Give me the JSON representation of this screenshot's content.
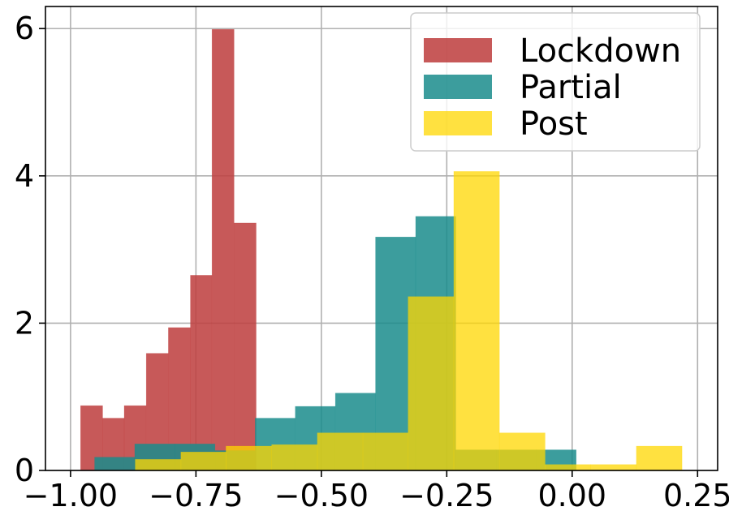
{
  "chart_data": {
    "type": "bar",
    "subtype": "histogram",
    "title": "",
    "xlabel": "",
    "ylabel": "",
    "xlim": [
      -1.05,
      0.29
    ],
    "ylim": [
      0,
      6.3
    ],
    "xticks": [
      -1.0,
      -0.75,
      -0.5,
      -0.25,
      0.0,
      0.25
    ],
    "xtick_labels": [
      "−1.00",
      "−0.75",
      "−0.50",
      "−0.25",
      "0.00",
      "0.25"
    ],
    "yticks": [
      0,
      2,
      4,
      6
    ],
    "ytick_labels": [
      "0",
      "2",
      "4",
      "6"
    ],
    "grid": true,
    "legend_position": "top-right",
    "series": [
      {
        "name": "Lockdown",
        "color": "#bf4040",
        "opacity": 0.87,
        "bins": [
          {
            "x0": -0.98,
            "x1": -0.936,
            "value": 0.88
          },
          {
            "x0": -0.936,
            "x1": -0.893,
            "value": 0.71
          },
          {
            "x0": -0.893,
            "x1": -0.849,
            "value": 0.88
          },
          {
            "x0": -0.849,
            "x1": -0.805,
            "value": 1.59
          },
          {
            "x0": -0.805,
            "x1": -0.761,
            "value": 1.94
          },
          {
            "x0": -0.761,
            "x1": -0.718,
            "value": 2.65
          },
          {
            "x0": -0.718,
            "x1": -0.674,
            "value": 5.99
          },
          {
            "x0": -0.674,
            "x1": -0.63,
            "value": 3.36
          }
        ]
      },
      {
        "name": "Partial",
        "color": "#1a8c8c",
        "opacity": 0.85,
        "bins": [
          {
            "x0": -0.952,
            "x1": -0.872,
            "value": 0.18
          },
          {
            "x0": -0.872,
            "x1": -0.792,
            "value": 0.36
          },
          {
            "x0": -0.792,
            "x1": -0.712,
            "value": 0.36
          },
          {
            "x0": -0.712,
            "x1": -0.632,
            "value": 0.27
          },
          {
            "x0": -0.632,
            "x1": -0.552,
            "value": 0.71
          },
          {
            "x0": -0.552,
            "x1": -0.472,
            "value": 0.87
          },
          {
            "x0": -0.472,
            "x1": -0.392,
            "value": 1.05
          },
          {
            "x0": -0.392,
            "x1": -0.312,
            "value": 3.17
          },
          {
            "x0": -0.312,
            "x1": -0.232,
            "value": 3.45
          },
          {
            "x0": -0.232,
            "x1": -0.152,
            "value": 0.28
          },
          {
            "x0": -0.152,
            "x1": -0.072,
            "value": 0.28
          },
          {
            "x0": -0.072,
            "x1": 0.008,
            "value": 0.28
          }
        ]
      },
      {
        "name": "Post",
        "color": "#ffd700",
        "opacity": 0.75,
        "bins": [
          {
            "x0": -0.871,
            "x1": -0.78,
            "value": 0.15
          },
          {
            "x0": -0.78,
            "x1": -0.69,
            "value": 0.25
          },
          {
            "x0": -0.69,
            "x1": -0.599,
            "value": 0.33
          },
          {
            "x0": -0.599,
            "x1": -0.508,
            "value": 0.35
          },
          {
            "x0": -0.508,
            "x1": -0.417,
            "value": 0.51
          },
          {
            "x0": -0.417,
            "x1": -0.327,
            "value": 0.51
          },
          {
            "x0": -0.327,
            "x1": -0.236,
            "value": 2.36
          },
          {
            "x0": -0.236,
            "x1": -0.145,
            "value": 4.06
          },
          {
            "x0": -0.145,
            "x1": -0.054,
            "value": 0.51
          },
          {
            "x0": -0.054,
            "x1": 0.037,
            "value": 0.08
          },
          {
            "x0": 0.037,
            "x1": 0.128,
            "value": 0.08
          },
          {
            "x0": 0.128,
            "x1": 0.219,
            "value": 0.33
          }
        ]
      }
    ]
  }
}
